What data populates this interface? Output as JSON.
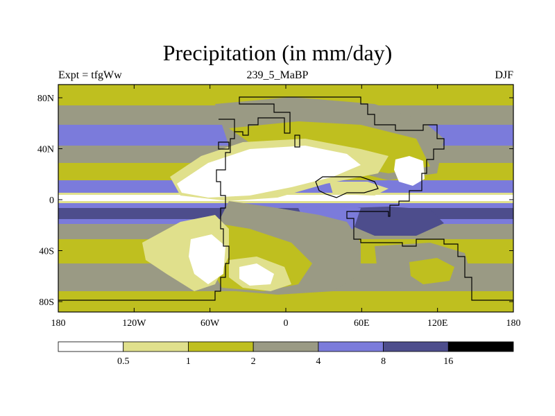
{
  "title": "Precipitation (in mm/day)",
  "subtitle": {
    "left": "Expt = tfgWw",
    "center": "239_5_MaBP",
    "right": "DJF"
  },
  "axes": {
    "x_ticks": [
      "180",
      "120W",
      "60W",
      "0",
      "60E",
      "120E",
      "180"
    ],
    "y_ticks": [
      "80N",
      "40N",
      "0",
      "40S",
      "80S"
    ]
  },
  "legend": {
    "labels": [
      "0.5",
      "1",
      "2",
      "4",
      "8",
      "16"
    ],
    "colors": [
      "#ffffff",
      "#e0e08c",
      "#bfbf1f",
      "#9a9a84",
      "#7b7bdb",
      "#4d4d8c",
      "#000000"
    ]
  },
  "colors": {
    "white": "#ffffff",
    "pale": "#e0e08c",
    "olive": "#bfbf1f",
    "gray": "#9a9a84",
    "blue": "#7b7bdb",
    "navy": "#4d4d8c",
    "black": "#000000"
  }
}
